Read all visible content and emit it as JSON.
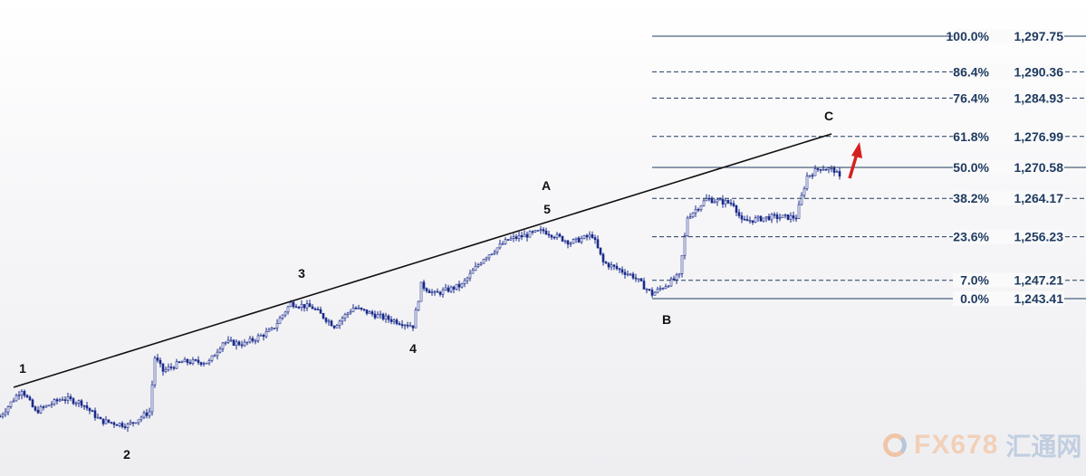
{
  "chart_data": {
    "type": "candlestick",
    "title": "",
    "xlabel": "",
    "ylabel": "",
    "ylim": [
      1210,
      1300
    ],
    "grid": false,
    "colors": {
      "candles": "#1a2a8a",
      "fib_lines": "#1e3a5f",
      "trendline": "#111111",
      "arrow": "#d42020"
    },
    "price_path": [
      {
        "bar": 0,
        "price": 1219.05
      },
      {
        "bar": 8,
        "price": 1224.67
      },
      {
        "bar": 13,
        "price": 1219.99
      },
      {
        "bar": 23,
        "price": 1222.8
      },
      {
        "bar": 30,
        "price": 1221.86
      },
      {
        "bar": 37,
        "price": 1218.11
      },
      {
        "bar": 47,
        "price": 1217.18
      },
      {
        "bar": 55,
        "price": 1219.99
      },
      {
        "bar": 57,
        "price": 1231.23
      },
      {
        "bar": 60,
        "price": 1228.42
      },
      {
        "bar": 67,
        "price": 1230.29
      },
      {
        "bar": 77,
        "price": 1230.29
      },
      {
        "bar": 82,
        "price": 1234.42
      },
      {
        "bar": 90,
        "price": 1234.04
      },
      {
        "bar": 100,
        "price": 1236.85
      },
      {
        "bar": 107,
        "price": 1242.47
      },
      {
        "bar": 115,
        "price": 1241.54
      },
      {
        "bar": 123,
        "price": 1237.79
      },
      {
        "bar": 130,
        "price": 1241.54
      },
      {
        "bar": 140,
        "price": 1239.66
      },
      {
        "bar": 152,
        "price": 1237.79
      },
      {
        "bar": 155,
        "price": 1246.22
      },
      {
        "bar": 160,
        "price": 1244.35
      },
      {
        "bar": 170,
        "price": 1246.22
      },
      {
        "bar": 178,
        "price": 1251.84
      },
      {
        "bar": 187,
        "price": 1255.59
      },
      {
        "bar": 200,
        "price": 1257.46
      },
      {
        "bar": 210,
        "price": 1255.03
      },
      {
        "bar": 218,
        "price": 1256.53
      },
      {
        "bar": 222,
        "price": 1250.9
      },
      {
        "bar": 233,
        "price": 1248.09
      },
      {
        "bar": 240,
        "price": 1244.35
      },
      {
        "bar": 250,
        "price": 1248.09
      },
      {
        "bar": 253,
        "price": 1260.27
      },
      {
        "bar": 260,
        "price": 1264.02
      },
      {
        "bar": 270,
        "price": 1263.08
      },
      {
        "bar": 273,
        "price": 1259.34
      },
      {
        "bar": 283,
        "price": 1260.27
      },
      {
        "bar": 293,
        "price": 1260.27
      },
      {
        "bar": 297,
        "price": 1268.71
      },
      {
        "bar": 302,
        "price": 1270.58
      },
      {
        "bar": 307,
        "price": 1270.02
      },
      {
        "bar": 309,
        "price": 1268.33
      }
    ],
    "trendline": {
      "from": {
        "bar": 5,
        "price": 1225.05
      },
      "to": {
        "bar": 306,
        "price": 1277.51
      }
    },
    "fibonacci": [
      {
        "level": "100.0%",
        "price": "1,297.75",
        "value": 1297.75,
        "style": "solid"
      },
      {
        "level": "86.4%",
        "price": "1,290.36",
        "value": 1290.36,
        "style": "dashed"
      },
      {
        "level": "76.4%",
        "price": "1,284.93",
        "value": 1284.93,
        "style": "dashed"
      },
      {
        "level": "61.8%",
        "price": "1,276.99",
        "value": 1276.99,
        "style": "dashed"
      },
      {
        "level": "50.0%",
        "price": "1,270.58",
        "value": 1270.58,
        "style": "solid"
      },
      {
        "level": "38.2%",
        "price": "1,264.17",
        "value": 1264.17,
        "style": "dashed"
      },
      {
        "level": "23.6%",
        "price": "1,256.23",
        "value": 1256.23,
        "style": "dashed"
      },
      {
        "level": "7.0%",
        "price": "1,247.21",
        "value": 1247.21,
        "style": "dashed"
      },
      {
        "level": "0.0%",
        "price": "1,243.41",
        "value": 1243.41,
        "style": "solid"
      }
    ],
    "wave_labels": [
      "1",
      "2",
      "3",
      "4",
      "5",
      "A",
      "B",
      "C"
    ],
    "annotation": "red-up-arrow"
  },
  "watermark": {
    "text_en": "FX678",
    "text_cn": "汇通网"
  }
}
